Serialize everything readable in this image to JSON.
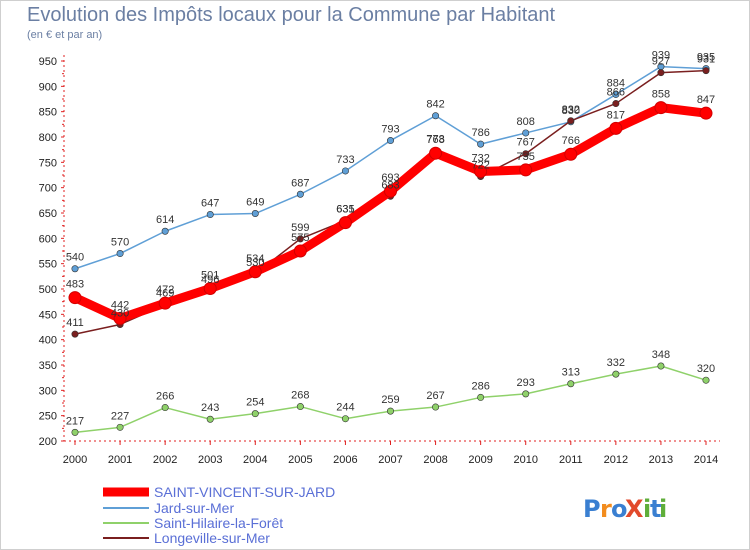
{
  "chart_data": {
    "type": "line",
    "title": "Evolution des Impôts locaux pour la Commune par Habitant",
    "subtitle": "(en € et par an)",
    "x": [
      "2000",
      "2001",
      "2002",
      "2003",
      "2004",
      "2005",
      "2006",
      "2007",
      "2008",
      "2009",
      "2010",
      "2011",
      "2012",
      "2013",
      "2014"
    ],
    "ylim": [
      200,
      950
    ],
    "yticks": [
      "200",
      "250",
      "300",
      "350",
      "400",
      "450",
      "500",
      "550",
      "600",
      "650",
      "700",
      "750",
      "800",
      "850",
      "900",
      "950"
    ],
    "series": [
      {
        "name": "Jard-sur-Mer",
        "color": "#5f9fd6",
        "values": [
          540,
          570,
          614,
          647,
          649,
          687,
          733,
          793,
          842,
          786,
          808,
          830,
          884,
          939,
          935
        ],
        "labels": [
          "540",
          "570",
          "614",
          "647",
          "649",
          "687",
          "733",
          "793",
          "842",
          "786",
          "808",
          "830",
          "884",
          "939",
          "935"
        ]
      },
      {
        "name": "Saint-Hilaire-la-Forêt",
        "color": "#8fd16a",
        "values": [
          217,
          227,
          266,
          243,
          254,
          268,
          244,
          259,
          267,
          286,
          293,
          313,
          332,
          348,
          320
        ],
        "labels": [
          "217",
          "227",
          "266",
          "243",
          "254",
          "268",
          "244",
          "259",
          "267",
          "286",
          "293",
          "313",
          "332",
          "348",
          "320"
        ]
      },
      {
        "name": "Longeville-sur-Mer",
        "color": "#7a1f1f",
        "values": [
          411,
          430,
          469,
          496,
          530,
          599,
          635,
          683,
          773,
          722,
          767,
          832,
          866,
          927,
          931
        ],
        "labels": [
          "411",
          "430",
          "469",
          "496",
          "530",
          "599",
          "635",
          "683",
          "773",
          "722",
          "767",
          "832",
          "866",
          "927",
          "931"
        ]
      },
      {
        "name": "SAINT-VINCENT-SUR-JARD",
        "color": "#ff0000",
        "values": [
          483,
          442,
          472,
          501,
          534,
          575,
          631,
          693,
          768,
          732,
          735,
          766,
          817,
          858,
          847
        ],
        "labels": [
          "483",
          "442",
          "472",
          "501",
          "534",
          "575",
          "631",
          "693",
          "768",
          "732",
          "735",
          "766",
          "817",
          "858",
          "847"
        ]
      }
    ],
    "legend_order": [
      "SAINT-VINCENT-SUR-JARD",
      "Jard-sur-Mer",
      "Saint-Hilaire-la-Forêt",
      "Longeville-sur-Mer"
    ],
    "grid": false,
    "legend": "bottom-left"
  },
  "logo": {
    "text": "ProXiti",
    "letters": [
      "P",
      "r",
      "o",
      "X",
      "i",
      "t",
      "i"
    ],
    "colors": [
      "#3a7fd1",
      "#f28c1e",
      "#3a7fd1",
      "#e24a2c",
      "#5fae3a",
      "#3a7fd1",
      "#5fae3a"
    ]
  }
}
